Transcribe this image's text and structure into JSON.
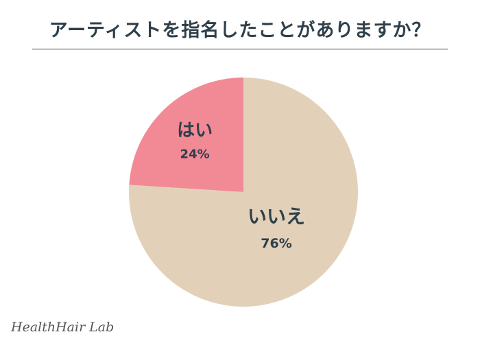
{
  "title": "アーティストを指名したことがありますか？",
  "chart_data": {
    "type": "pie",
    "start_angle_deg": 0,
    "direction": "counterclockwise",
    "slices": [
      {
        "label": "はい",
        "value": 24,
        "value_label": "24%",
        "color": "#f28a96"
      },
      {
        "label": "いいえ",
        "value": 76,
        "value_label": "76%",
        "color": "#e2d1b8"
      }
    ]
  },
  "logo": "HealthHair Lab"
}
